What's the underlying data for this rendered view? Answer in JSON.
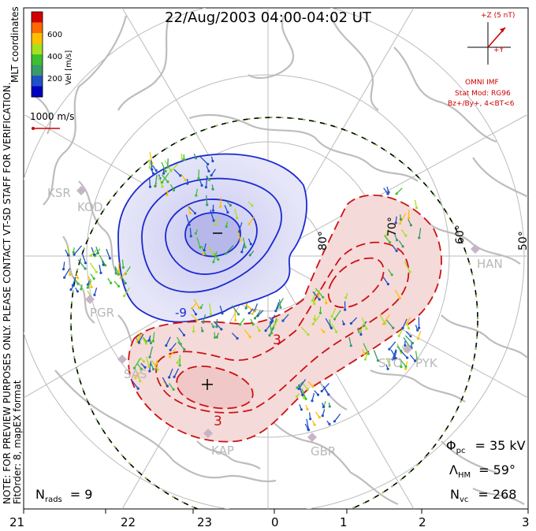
{
  "title": "22/Aug/2003 04:00-04:02 UT",
  "side_labels": {
    "coords": "MLT coordinates",
    "note": "NOTE: FOR PREVIEW PURPOSES ONLY. PLEASE CONTACT VT-SD STAFF FOR VERIFICATION.",
    "fit": "FitOrder: 8, mapEX format"
  },
  "colorbar": {
    "label": "Vel [m/s]",
    "ticks": [
      "600",
      "400",
      "200"
    ],
    "colors": [
      "#d40000",
      "#ff6a00",
      "#ffbf00",
      "#a8e020",
      "#3cc030",
      "#3a9a6a",
      "#2050c8",
      "#0000c0"
    ]
  },
  "scale_vector": {
    "label": "1000 m/s"
  },
  "imf": {
    "z_label": "+Z (5 nT)",
    "y_label": "+Y",
    "source": "OMNI IMF",
    "model": "Stat Mod: RG96",
    "condition": "Bz+/By+, 4<BT<6"
  },
  "latitude_labels": [
    "80°",
    "70°",
    "60°",
    "50°"
  ],
  "stations": [
    "KSR",
    "KOD",
    "PGR",
    "SAS",
    "KAP",
    "GBR",
    "STO",
    "PYK",
    "HAN"
  ],
  "contour_labels": [
    "-9",
    "3",
    "3"
  ],
  "stats": {
    "phi_symbol": "Φ",
    "phi_sub": "pc",
    "phi_value": "= 35 kV",
    "lambda_symbol": "Λ",
    "lambda_sub": "HM",
    "lambda_value": "= 59°",
    "nvc_symbol": "N",
    "nvc_sub": "vc",
    "nvc_value": "= 268",
    "nrads_symbol": "N",
    "nrads_sub": "rads",
    "nrads_value": "= 9"
  },
  "mlt_ticks": [
    "21",
    "22",
    "23",
    "0",
    "1",
    "2",
    "3"
  ]
}
